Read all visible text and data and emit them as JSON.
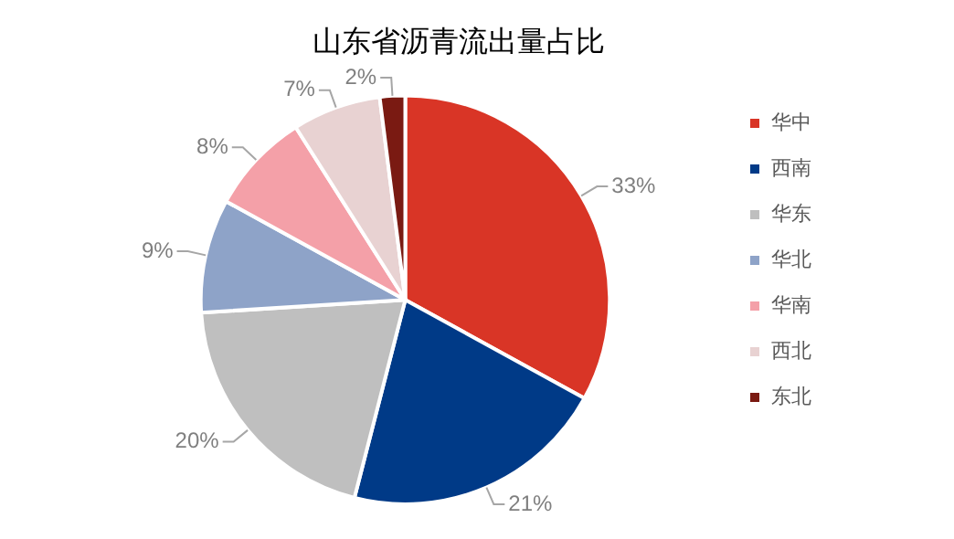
{
  "chart_data": {
    "type": "pie",
    "title": "山东省沥青流出量占比",
    "categories": [
      "华中",
      "西南",
      "华东",
      "华北",
      "华南",
      "西北",
      "东北"
    ],
    "values": [
      33,
      21,
      20,
      9,
      8,
      7,
      2
    ],
    "colors": [
      "#d93526",
      "#003a87",
      "#bfbfbf",
      "#8ea3c8",
      "#f4a0a8",
      "#e8d2d2",
      "#7a1a12"
    ],
    "value_labels": [
      "33%",
      "21%",
      "20%",
      "9%",
      "8%",
      "7%",
      "2%"
    ],
    "legend": "right"
  }
}
